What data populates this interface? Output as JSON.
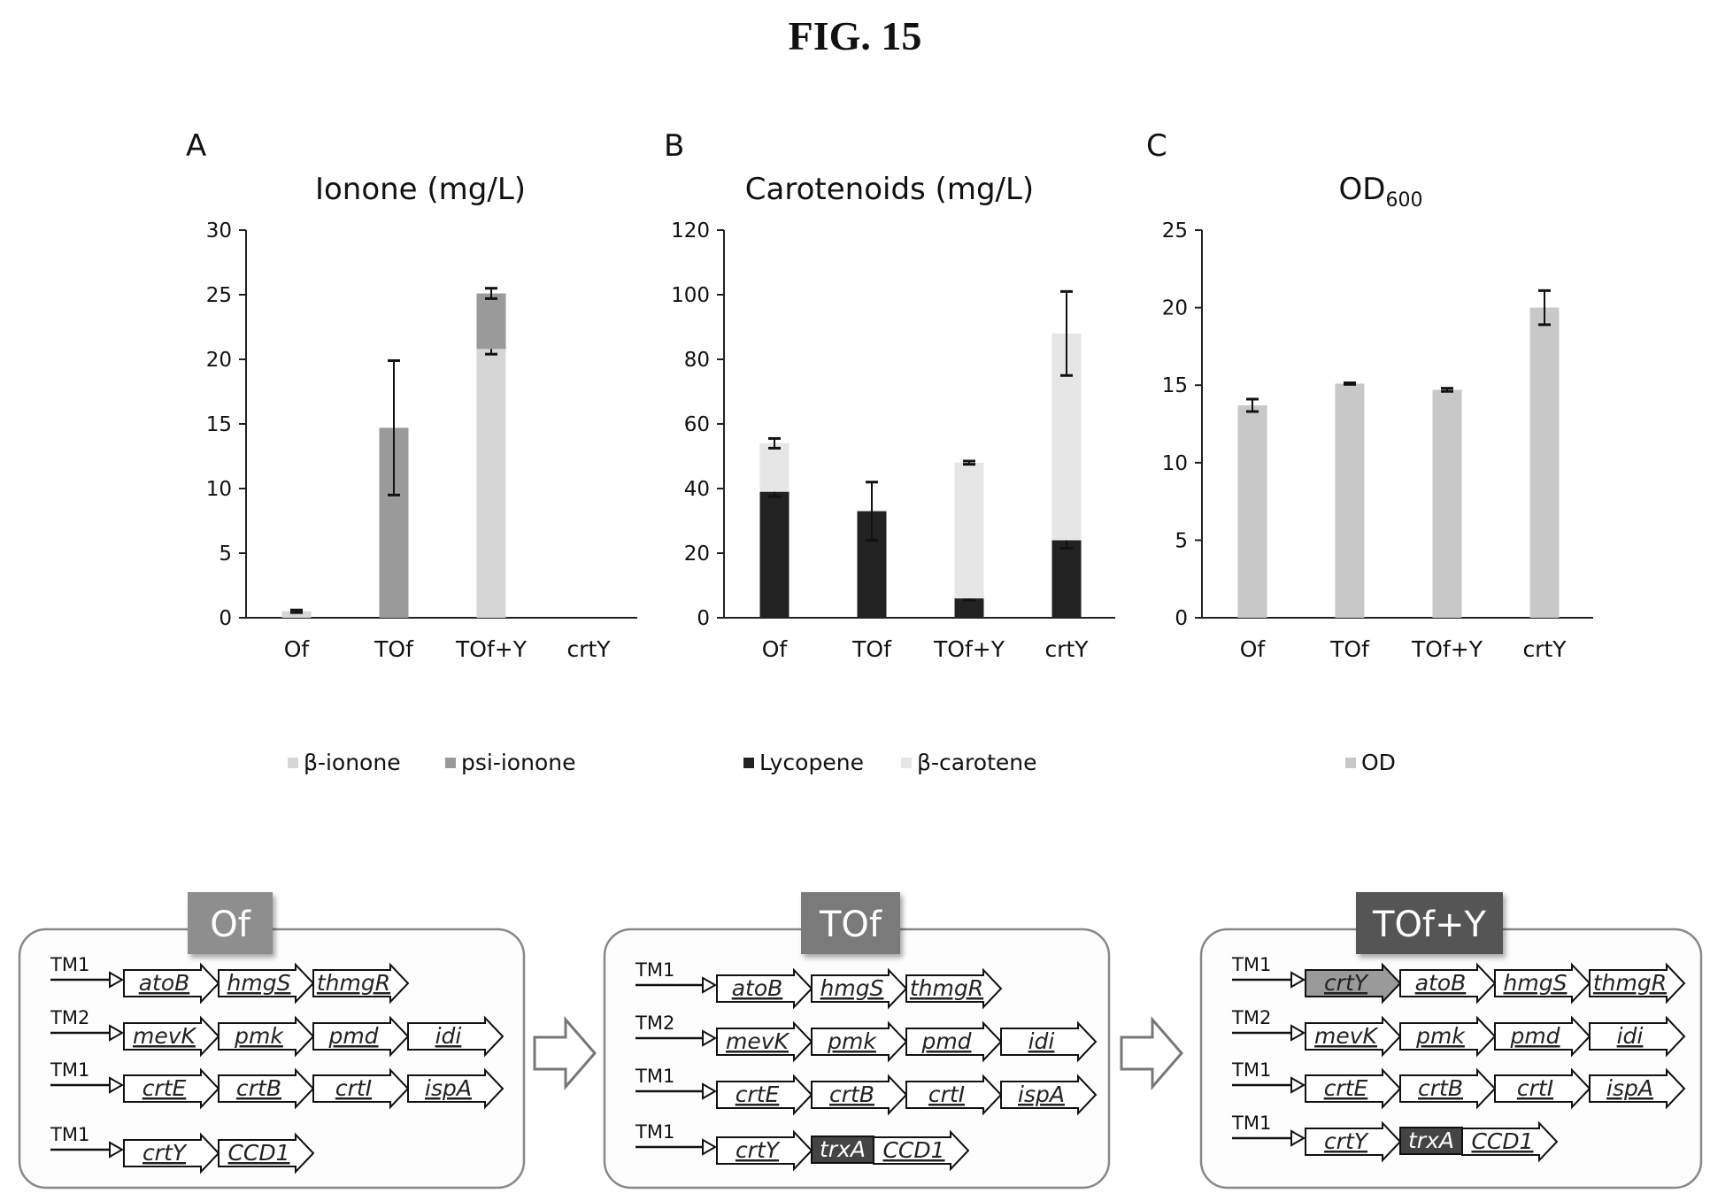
{
  "figure": {
    "title": "FIG. 15"
  },
  "colors": {
    "lycopene": "#222222",
    "beta_carotene": "#e6e6e6",
    "beta_ionone": "#d6d6d6",
    "psi_ionone": "#9a9a9a",
    "od": "#c8c8c8",
    "strain_of": "#8e8e8e",
    "strain_tof": "#7a7a7a",
    "strain_tofy": "#555555",
    "trxA": "#444444",
    "crtY_highlight": "#9a9a9a"
  },
  "chart_data": [
    {
      "panel": "A",
      "type": "bar",
      "stacked": true,
      "title": "Ionone (mg/L)",
      "categories": [
        "Of",
        "TOf",
        "TOf+Y",
        "crtY"
      ],
      "ylim": [
        0,
        30
      ],
      "yticks": [
        0,
        5,
        10,
        15,
        20,
        25,
        30
      ],
      "grid": false,
      "legend_position": "bottom",
      "series": [
        {
          "name": "β-ionone",
          "color_key": "beta_ionone",
          "values": [
            0.5,
            0,
            20.8,
            0
          ],
          "errors": [
            0.1,
            0,
            0.4,
            0
          ]
        },
        {
          "name": "psi-ionone",
          "color_key": "psi_ionone",
          "values": [
            0,
            14.7,
            4.3,
            0
          ],
          "errors": [
            0,
            5.2,
            0.4,
            0
          ]
        }
      ],
      "lycopene_marks_note": null
    },
    {
      "panel": "B",
      "type": "bar",
      "stacked": true,
      "title": "Carotenoids (mg/L)",
      "categories": [
        "Of",
        "TOf",
        "TOf+Y",
        "crtY"
      ],
      "ylim": [
        0,
        120
      ],
      "yticks": [
        0,
        20,
        40,
        60,
        80,
        100,
        120
      ],
      "grid": false,
      "legend_position": "bottom",
      "series": [
        {
          "name": "Lycopene",
          "color_key": "lycopene",
          "values": [
            39,
            33,
            6,
            24
          ],
          "errors": [
            1.5,
            9,
            0.5,
            2.5
          ]
        },
        {
          "name": "β-carotene",
          "color_key": "beta_carotene",
          "values": [
            15,
            0,
            42,
            64
          ],
          "errors": [
            1.5,
            0,
            0.5,
            13
          ]
        }
      ]
    },
    {
      "panel": "C",
      "type": "bar",
      "stacked": false,
      "title": "OD",
      "title_subscript": "600",
      "categories": [
        "Of",
        "TOf",
        "TOf+Y",
        "crtY"
      ],
      "ylim": [
        0,
        25
      ],
      "yticks": [
        0,
        5,
        10,
        15,
        20,
        25
      ],
      "grid": false,
      "legend_position": "bottom",
      "series": [
        {
          "name": "OD",
          "color_key": "od",
          "values": [
            13.7,
            15.1,
            14.7,
            20.0
          ],
          "errors": [
            0.4,
            0.05,
            0.1,
            1.1
          ]
        }
      ]
    }
  ],
  "constructs": [
    {
      "strain": "Of",
      "color_key": "strain_of",
      "operons": [
        {
          "promoter": "TM1",
          "genes": [
            {
              "name": "atoB"
            },
            {
              "name": "hmgS"
            },
            {
              "name": "thmgR"
            }
          ]
        },
        {
          "promoter": "TM2",
          "genes": [
            {
              "name": "mevK"
            },
            {
              "name": "pmk"
            },
            {
              "name": "pmd"
            },
            {
              "name": "idi"
            }
          ]
        },
        {
          "promoter": "TM1",
          "genes": [
            {
              "name": "crtE"
            },
            {
              "name": "crtB"
            },
            {
              "name": "crtI"
            },
            {
              "name": "ispA"
            }
          ]
        },
        {
          "promoter": "TM1",
          "genes": [
            {
              "name": "crtY"
            },
            {
              "name": "CCD1"
            }
          ]
        }
      ]
    },
    {
      "strain": "TOf",
      "color_key": "strain_tof",
      "operons": [
        {
          "promoter": "TM1",
          "genes": [
            {
              "name": "atoB"
            },
            {
              "name": "hmgS"
            },
            {
              "name": "thmgR"
            }
          ]
        },
        {
          "promoter": "TM2",
          "genes": [
            {
              "name": "mevK"
            },
            {
              "name": "pmk"
            },
            {
              "name": "pmd"
            },
            {
              "name": "idi"
            }
          ]
        },
        {
          "promoter": "TM1",
          "genes": [
            {
              "name": "crtE"
            },
            {
              "name": "crtB"
            },
            {
              "name": "crtI"
            },
            {
              "name": "ispA"
            }
          ]
        },
        {
          "promoter": "TM1",
          "genes": [
            {
              "name": "crtY"
            },
            {
              "name": "trxA",
              "fused": true
            },
            {
              "name": "CCD1"
            }
          ]
        }
      ]
    },
    {
      "strain": "TOf+Y",
      "color_key": "strain_tofy",
      "operons": [
        {
          "promoter": "TM1",
          "genes": [
            {
              "name": "crtY",
              "highlight": true
            },
            {
              "name": "atoB"
            },
            {
              "name": "hmgS"
            },
            {
              "name": "thmgR"
            }
          ]
        },
        {
          "promoter": "TM2",
          "genes": [
            {
              "name": "mevK"
            },
            {
              "name": "pmk"
            },
            {
              "name": "pmd"
            },
            {
              "name": "idi"
            }
          ]
        },
        {
          "promoter": "TM1",
          "genes": [
            {
              "name": "crtE"
            },
            {
              "name": "crtB"
            },
            {
              "name": "crtI"
            },
            {
              "name": "ispA"
            }
          ]
        },
        {
          "promoter": "TM1",
          "genes": [
            {
              "name": "crtY"
            },
            {
              "name": "trxA",
              "fused": true
            },
            {
              "name": "CCD1"
            }
          ]
        }
      ]
    }
  ]
}
